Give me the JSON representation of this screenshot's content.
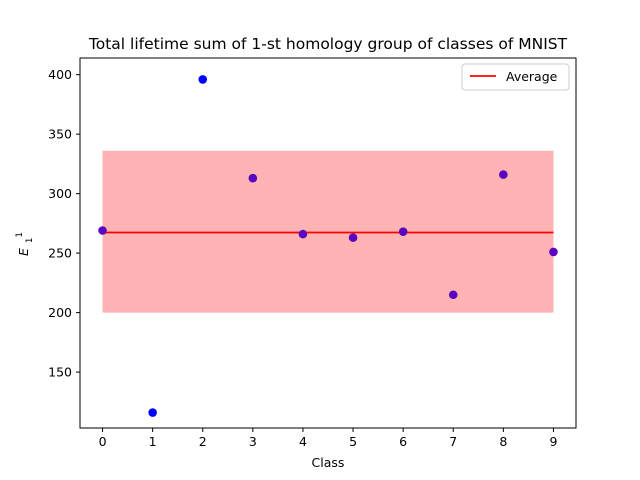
{
  "chart_data": {
    "type": "scatter",
    "title": "Total lifetime sum of 1-st homology group of classes of MNIST",
    "xlabel": "Class",
    "ylabel": {
      "base": "E",
      "sup": "1",
      "sub": "1"
    },
    "x": [
      0,
      1,
      2,
      3,
      4,
      5,
      6,
      7,
      8,
      9
    ],
    "values": [
      269,
      116,
      396,
      313,
      266,
      263,
      268,
      215,
      316,
      251
    ],
    "average": 267.3,
    "band": [
      200,
      336
    ],
    "xlim": [
      -0.45,
      9.45
    ],
    "ylim": [
      103,
      414
    ],
    "xticks": [
      0,
      1,
      2,
      3,
      4,
      5,
      6,
      7,
      8,
      9
    ],
    "yticks": [
      150,
      200,
      250,
      300,
      350,
      400
    ],
    "legend": {
      "label": "Average",
      "placement": "upper right"
    },
    "colors": {
      "points": "#0000ff",
      "points_in_band": "#5a06c0",
      "average_line": "#ff0000",
      "band_fill": "#ffb3b3"
    },
    "grid": false
  }
}
